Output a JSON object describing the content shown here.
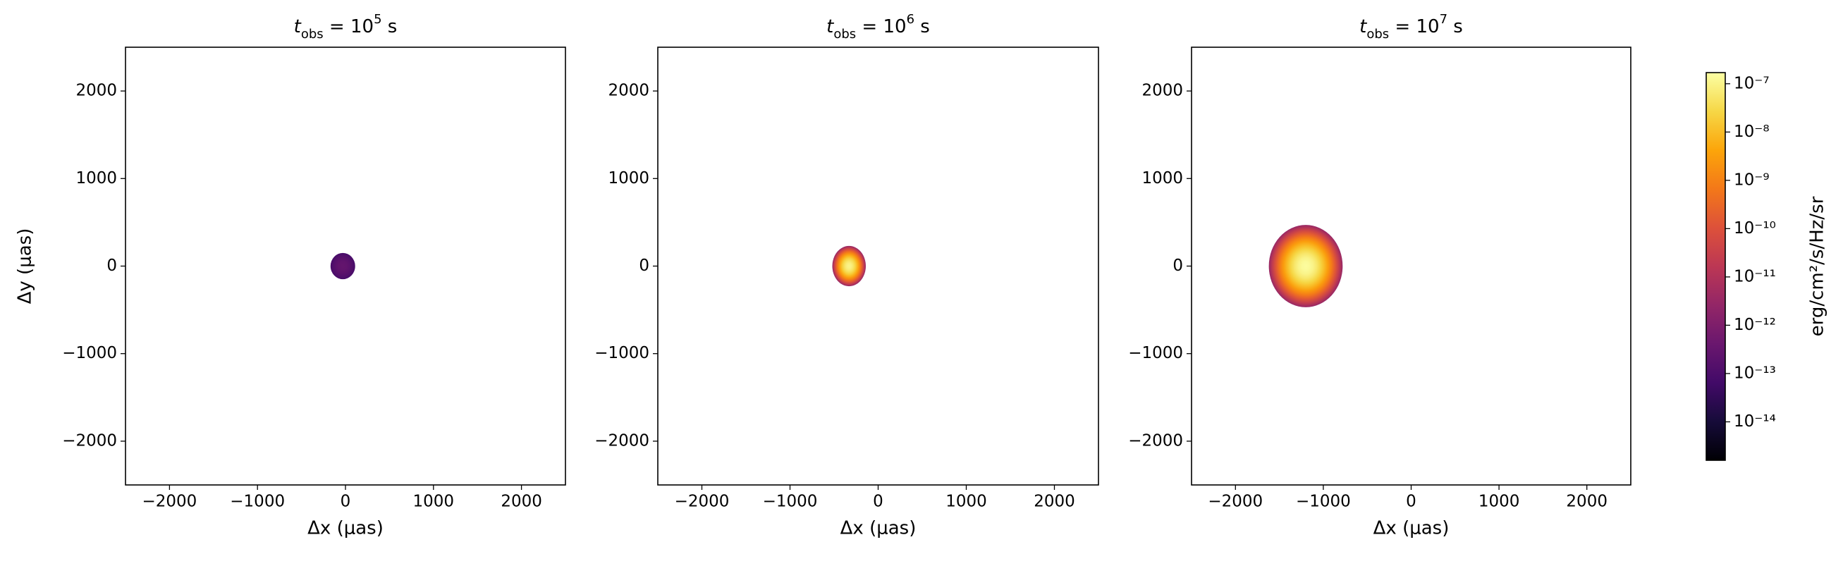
{
  "chart_data": [
    {
      "type": "image",
      "title": {
        "italic": "t",
        "sub": "obs",
        "mid": " = 10",
        "sup": "5",
        "end": " s"
      },
      "xlabel": "Δx (μas)",
      "ylabel": "Δy (μas)",
      "xlim": [
        -2500,
        2500
      ],
      "ylim": [
        -2500,
        2500
      ],
      "xticks": [
        {
          "value": -2000,
          "label": "−2000"
        },
        {
          "value": -1000,
          "label": "−1000"
        },
        0,
        1000,
        2000
      ],
      "yticks": [
        {
          "value": -2000,
          "label": "−2000"
        },
        {
          "value": -1000,
          "label": "−1000"
        },
        0,
        1000,
        2000
      ],
      "blob": {
        "x": -30,
        "y": 0,
        "rx": 140,
        "ry": 150,
        "peak": 3e-13,
        "edge": 8e-14
      }
    },
    {
      "type": "image",
      "title": {
        "italic": "t",
        "sub": "obs",
        "mid": " = 10",
        "sup": "6",
        "end": " s"
      },
      "xlabel": "Δx (μas)",
      "xlim": [
        -2500,
        2500
      ],
      "ylim": [
        -2500,
        2500
      ],
      "xticks": [
        {
          "value": -2000,
          "label": "−2000"
        },
        {
          "value": -1000,
          "label": "−1000"
        },
        0,
        1000,
        2000
      ],
      "yticks": [
        {
          "value": -2000,
          "label": "−2000"
        },
        {
          "value": -1000,
          "label": "−1000"
        },
        0,
        1000,
        2000
      ],
      "blob": {
        "x": -330,
        "y": 0,
        "rx": 190,
        "ry": 230,
        "peak": 1e-07,
        "edge": 3e-12
      }
    },
    {
      "type": "image",
      "title": {
        "italic": "t",
        "sub": "obs",
        "mid": " = 10",
        "sup": "7",
        "end": " s"
      },
      "xlabel": "Δx (μas)",
      "xlim": [
        -2500,
        2500
      ],
      "ylim": [
        -2500,
        2500
      ],
      "xticks": [
        {
          "value": -2000,
          "label": "−2000"
        },
        {
          "value": -1000,
          "label": "−1000"
        },
        0,
        1000,
        2000
      ],
      "yticks": [
        {
          "value": -2000,
          "label": "−2000"
        },
        {
          "value": -1000,
          "label": "−1000"
        },
        0,
        1000,
        2000
      ],
      "blob": {
        "x": -1200,
        "y": 0,
        "rx": 420,
        "ry": 470,
        "peak": 1.5e-07,
        "edge": 3e-12
      }
    }
  ],
  "colorbar": {
    "label": "erg/cm²/s/Hz/sr",
    "cmap": "inferno",
    "log": true,
    "lim": [
      1.6e-15,
      1.7e-07
    ],
    "ticks": [
      {
        "value": 1e-14,
        "label": "10⁻¹⁴"
      },
      {
        "value": 1e-13,
        "label": "10⁻¹³"
      },
      {
        "value": 1e-12,
        "label": "10⁻¹²"
      },
      {
        "value": 1e-11,
        "label": "10⁻¹¹"
      },
      {
        "value": 1e-10,
        "label": "10⁻¹⁰"
      },
      {
        "value": 1e-09,
        "label": "10⁻⁹"
      },
      {
        "value": 1e-08,
        "label": "10⁻⁸"
      },
      {
        "value": 1e-07,
        "label": "10⁻⁷"
      }
    ]
  }
}
